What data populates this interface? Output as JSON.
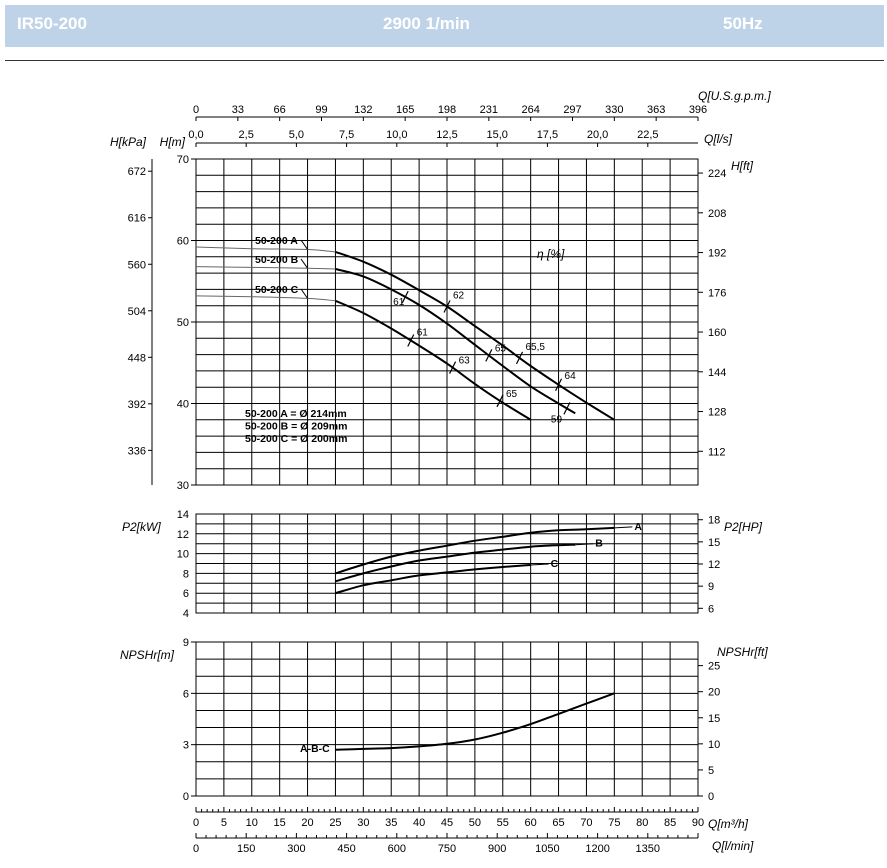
{
  "header": {
    "model": "IR50-200",
    "speed": "2900 1/min",
    "frequency": "50Hz"
  },
  "top_axes": {
    "gpm": {
      "label": "Q[U.S.g.p.m.]",
      "ticks": [
        "0",
        "33",
        "66",
        "99",
        "132",
        "165",
        "198",
        "231",
        "264",
        "297",
        "330",
        "363",
        "396"
      ]
    },
    "ls": {
      "label": "Q[l/s]",
      "ticks": [
        "0,0",
        "2,5",
        "5,0",
        "7,5",
        "10,0",
        "12,5",
        "15,0",
        "17,5",
        "20,0",
        "22,5"
      ]
    }
  },
  "bottom_axes": {
    "m3h": {
      "label": "Q[m³/h]",
      "ticks": [
        "0",
        "5",
        "10",
        "15",
        "20",
        "25",
        "30",
        "35",
        "40",
        "45",
        "50",
        "55",
        "60",
        "65",
        "70",
        "75",
        "80",
        "85",
        "90"
      ]
    },
    "lmin": {
      "label": "Q[l/min]",
      "ticks": [
        "0",
        "150",
        "300",
        "450",
        "600",
        "750",
        "900",
        "1050",
        "1200",
        "1350"
      ]
    }
  },
  "chart_data": [
    {
      "type": "line",
      "name": "head",
      "x_units": "Q[m³/h]",
      "xlim": [
        0,
        90
      ],
      "ylim": [
        30,
        70
      ],
      "y_ticks": [
        "30",
        "40",
        "50",
        "60",
        "70"
      ],
      "ylabel": "H[m]",
      "ylabel_left2": "H[kPa]",
      "kpa_ticks": [
        "336",
        "392",
        "448",
        "504",
        "560",
        "616",
        "672"
      ],
      "ylabel_right": "H[ft]",
      "ft_ticks": [
        "112",
        "128",
        "144",
        "160",
        "176",
        "192",
        "208",
        "224"
      ],
      "efficiency_label": "η [%]",
      "series": [
        {
          "name": "50-200 A",
          "x": [
            0,
            10,
            20,
            25,
            30,
            35,
            40,
            45,
            50,
            55,
            60,
            65,
            70,
            75
          ],
          "y": [
            59.2,
            59,
            58.9,
            58.6,
            57.4,
            55.8,
            53.9,
            51.9,
            49.5,
            47.1,
            44.6,
            42.3,
            40.1,
            38
          ]
        },
        {
          "name": "50-200 B",
          "x": [
            0,
            10,
            20,
            25,
            30,
            35,
            40,
            45,
            50,
            55,
            60,
            65,
            68
          ],
          "y": [
            56.8,
            56.7,
            56.6,
            56.5,
            55.6,
            54,
            52.1,
            49.8,
            47.2,
            44.6,
            42.1,
            40,
            38.8
          ]
        },
        {
          "name": "50-200 C",
          "x": [
            0,
            10,
            20,
            25,
            30,
            35,
            40,
            45,
            50,
            55,
            60
          ],
          "y": [
            53.2,
            53.1,
            52.9,
            52.6,
            51.1,
            49.2,
            47.1,
            44.9,
            42.4,
            40.1,
            38
          ]
        }
      ],
      "efficiency_marks": [
        {
          "label": "61",
          "series": "50-200 B",
          "x": 37.5
        },
        {
          "label": "62",
          "series": "50-200 A",
          "x": 45
        },
        {
          "label": "61",
          "series": "50-200 C",
          "x": 38.5
        },
        {
          "label": "63",
          "series": "50-200 C",
          "x": 46
        },
        {
          "label": "65,5",
          "series": "50-200 A",
          "x": 58
        },
        {
          "label": "65",
          "series": "50-200 B",
          "x": 52.5
        },
        {
          "label": "65",
          "series": "50-200 C",
          "x": 54.5
        },
        {
          "label": "64",
          "series": "50-200 A",
          "x": 65
        },
        {
          "label": "59",
          "series": "50-200 B",
          "x": 66.5
        }
      ],
      "legend": [
        "50-200 A = Ø 214mm",
        "50-200 B = Ø 209mm",
        "50-200 C = Ø 200mm"
      ]
    },
    {
      "type": "line",
      "name": "power",
      "xlim": [
        0,
        90
      ],
      "ylim": [
        4,
        14
      ],
      "y_ticks": [
        "4",
        "6",
        "8",
        "10",
        "12",
        "14"
      ],
      "ylabel": "P2[kW]",
      "ylabel_right": "P2[HP]",
      "hp_ticks": [
        "6",
        "9",
        "12",
        "15",
        "18"
      ],
      "series": [
        {
          "name": "A",
          "x": [
            25,
            30,
            35,
            40,
            45,
            50,
            55,
            60,
            65,
            70,
            75
          ],
          "y": [
            8,
            8.9,
            9.7,
            10.3,
            10.8,
            11.3,
            11.7,
            12.1,
            12.35,
            12.45,
            12.6
          ]
        },
        {
          "name": "B",
          "x": [
            25,
            30,
            35,
            40,
            45,
            50,
            55,
            60,
            65,
            68
          ],
          "y": [
            7.2,
            8,
            8.7,
            9.3,
            9.7,
            10.1,
            10.4,
            10.7,
            10.85,
            10.9
          ]
        },
        {
          "name": "C",
          "x": [
            25,
            30,
            35,
            40,
            45,
            50,
            55,
            60
          ],
          "y": [
            6,
            6.8,
            7.3,
            7.8,
            8.1,
            8.4,
            8.65,
            8.85
          ]
        }
      ]
    },
    {
      "type": "line",
      "name": "npsh",
      "xlim": [
        0,
        90
      ],
      "ylim": [
        0,
        9
      ],
      "y_ticks": [
        "0",
        "3",
        "6",
        "9"
      ],
      "ylabel": "NPSHr[m]",
      "ylabel_right": "NPSHr[ft]",
      "ft_ticks": [
        "0",
        "5",
        "10",
        "15",
        "20",
        "25"
      ],
      "series": [
        {
          "name": "A-B-C",
          "x": [
            25,
            30,
            35,
            40,
            45,
            50,
            55,
            60,
            65,
            70,
            75
          ],
          "y": [
            2.7,
            2.75,
            2.8,
            2.9,
            3.05,
            3.3,
            3.7,
            4.2,
            4.8,
            5.4,
            6
          ]
        }
      ]
    }
  ]
}
